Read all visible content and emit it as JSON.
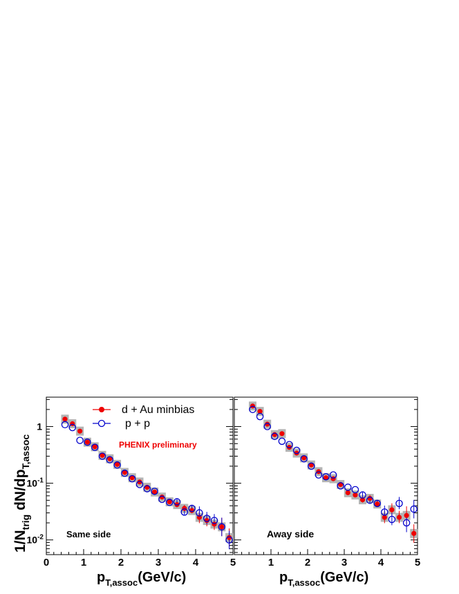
{
  "labels": {
    "ylabel_main": "1/N",
    "ylabel_sub1": "trig",
    "ylabel_mid": " dN/dp",
    "ylabel_sub2": "T,assoc",
    "xlabel_main": "p",
    "xlabel_sub": "T,assoc",
    "xlabel_unit": "(GeV/c)",
    "preliminary": "PHENIX preliminary",
    "panel_left": "Same side",
    "panel_right": "Away side",
    "legend_dau": "d + Au minbias",
    "legend_pp": "p + p"
  },
  "colors": {
    "dau": "#ee0000",
    "pp": "#0000cc",
    "syst_box": "#b4b4b4",
    "preliminary": "#ee0000"
  },
  "chart_data": [
    {
      "type": "scatter",
      "panel": "Same side",
      "xlim": [
        0,
        5
      ],
      "ylim": [
        0.0055,
        3.3
      ],
      "yscale": "log",
      "x_ticks": [
        "0",
        "1",
        "2",
        "3",
        "4",
        "5"
      ],
      "y_ticks": [
        "10^-2",
        "10^-1",
        "1"
      ],
      "series": [
        {
          "name": "d + Au minbias",
          "marker": "filled-circle",
          "x": [
            0.5,
            0.7,
            0.9,
            1.1,
            1.3,
            1.5,
            1.7,
            1.9,
            2.1,
            2.3,
            2.5,
            2.7,
            2.9,
            3.1,
            3.3,
            3.5,
            3.7,
            3.9,
            4.1,
            4.3,
            4.5,
            4.7,
            4.9
          ],
          "y": [
            1.35,
            1.12,
            0.83,
            0.53,
            0.44,
            0.31,
            0.27,
            0.215,
            0.155,
            0.125,
            0.105,
            0.085,
            0.07,
            0.057,
            0.047,
            0.042,
            0.036,
            0.033,
            0.025,
            0.022,
            0.019,
            0.017,
            0.011
          ]
        },
        {
          "name": "p + p",
          "marker": "open-circle",
          "x": [
            0.5,
            0.7,
            0.9,
            1.1,
            1.3,
            1.5,
            1.7,
            1.9,
            2.1,
            2.3,
            2.5,
            2.7,
            2.9,
            3.1,
            3.3,
            3.5,
            3.7,
            3.9,
            4.1,
            4.3,
            4.5,
            4.7,
            4.9
          ],
          "y": [
            1.08,
            0.96,
            0.57,
            0.53,
            0.43,
            0.3,
            0.26,
            0.21,
            0.15,
            0.12,
            0.095,
            0.08,
            0.072,
            0.052,
            0.046,
            0.047,
            0.031,
            0.036,
            0.03,
            0.024,
            0.022,
            0.017,
            0.01
          ]
        }
      ]
    },
    {
      "type": "scatter",
      "panel": "Away side",
      "xlim": [
        0,
        5
      ],
      "ylim": [
        0.0055,
        3.3
      ],
      "yscale": "log",
      "x_ticks": [
        "1",
        "2",
        "3",
        "4",
        "5"
      ],
      "y_ticks": [],
      "series": [
        {
          "name": "d + Au minbias",
          "marker": "filled-circle",
          "x": [
            0.5,
            0.7,
            0.9,
            1.1,
            1.3,
            1.5,
            1.7,
            1.9,
            2.1,
            2.3,
            2.5,
            2.7,
            2.9,
            3.1,
            3.3,
            3.5,
            3.7,
            3.9,
            4.1,
            4.3,
            4.5,
            4.7,
            4.9
          ],
          "y": [
            2.3,
            1.85,
            1.1,
            0.72,
            0.75,
            0.43,
            0.34,
            0.28,
            0.21,
            0.16,
            0.125,
            0.12,
            0.095,
            0.068,
            0.062,
            0.051,
            0.054,
            0.043,
            0.025,
            0.034,
            0.025,
            0.027,
            0.013
          ]
        },
        {
          "name": "p + p",
          "marker": "open-circle",
          "x": [
            0.5,
            0.7,
            0.9,
            1.1,
            1.3,
            1.5,
            1.7,
            1.9,
            2.1,
            2.3,
            2.5,
            2.7,
            2.9,
            3.1,
            3.3,
            3.5,
            3.7,
            3.9,
            4.1,
            4.3,
            4.5,
            4.7,
            4.9
          ],
          "y": [
            2.0,
            1.5,
            1.0,
            0.67,
            0.55,
            0.48,
            0.38,
            0.27,
            0.2,
            0.14,
            0.13,
            0.14,
            0.09,
            0.085,
            0.077,
            0.062,
            0.05,
            0.044,
            0.031,
            0.023,
            0.044,
            0.02,
            0.035
          ]
        }
      ]
    }
  ]
}
